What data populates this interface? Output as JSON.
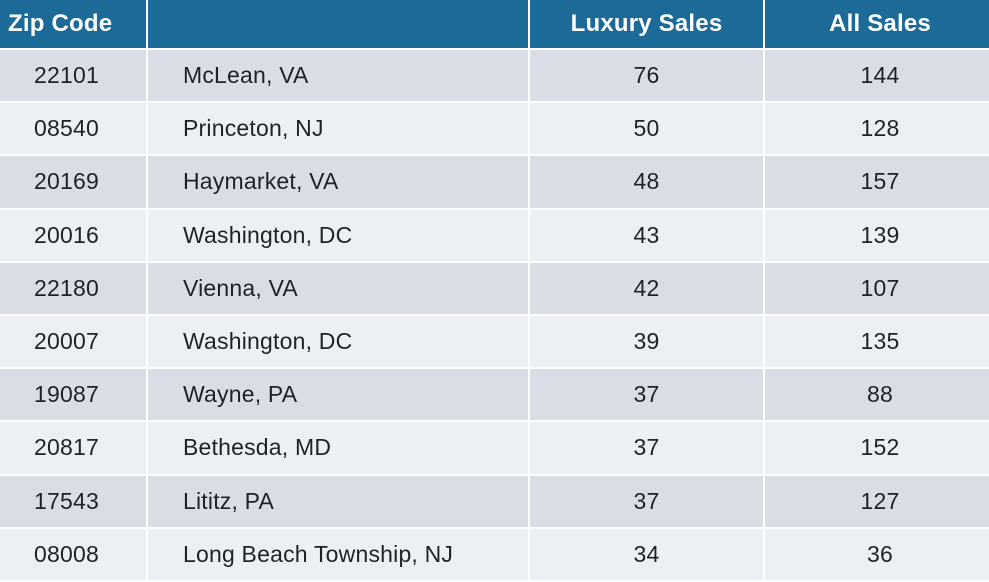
{
  "table": {
    "headers": {
      "zip": "Zip Code",
      "city": "",
      "luxury": "Luxury Sales",
      "all": "All Sales"
    },
    "rows": [
      {
        "zip": "22101",
        "city": "McLean, VA",
        "luxury": "76",
        "all": "144"
      },
      {
        "zip": "08540",
        "city": "Princeton, NJ",
        "luxury": "50",
        "all": "128"
      },
      {
        "zip": "20169",
        "city": "Haymarket, VA",
        "luxury": "48",
        "all": "157"
      },
      {
        "zip": "20016",
        "city": "Washington, DC",
        "luxury": "43",
        "all": "139"
      },
      {
        "zip": "22180",
        "city": "Vienna, VA",
        "luxury": "42",
        "all": "107"
      },
      {
        "zip": "20007",
        "city": "Washington, DC",
        "luxury": "39",
        "all": "135"
      },
      {
        "zip": "19087",
        "city": "Wayne, PA",
        "luxury": "37",
        "all": "88"
      },
      {
        "zip": "20817",
        "city": "Bethesda, MD",
        "luxury": "37",
        "all": "152"
      },
      {
        "zip": "17543",
        "city": "Lititz, PA",
        "luxury": "37",
        "all": "127"
      },
      {
        "zip": "08008",
        "city": "Long Beach Township, NJ",
        "luxury": "34",
        "all": "36"
      }
    ]
  },
  "colors": {
    "header_bg": "#1b6a97",
    "header_text": "#ffffff",
    "row_dark": "#d8dde6",
    "row_light": "#eceff4"
  }
}
